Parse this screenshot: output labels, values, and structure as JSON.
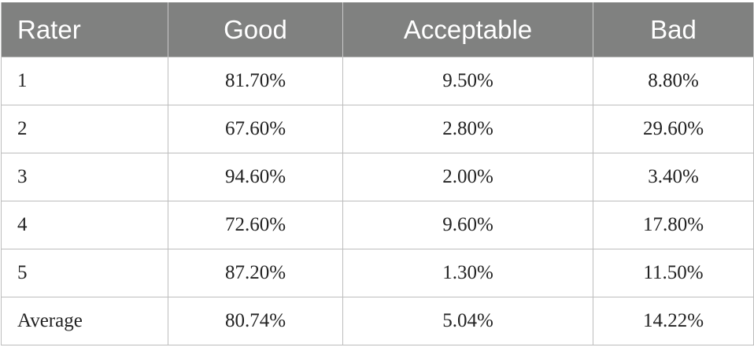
{
  "table": {
    "headers": [
      "Rater",
      "Good",
      "Acceptable",
      "Bad"
    ],
    "rows": [
      [
        "1",
        "81.70%",
        "9.50%",
        "8.80%"
      ],
      [
        "2",
        "67.60%",
        "2.80%",
        "29.60%"
      ],
      [
        "3",
        "94.60%",
        "2.00%",
        "3.40%"
      ],
      [
        "4",
        "72.60%",
        "9.60%",
        "17.80%"
      ],
      [
        "5",
        "87.20%",
        "1.30%",
        "11.50%"
      ],
      [
        "Average",
        "80.74%",
        "5.04%",
        "14.22%"
      ]
    ]
  },
  "colors": {
    "header_bg": "#808180",
    "header_text": "#ffffff",
    "grid": "#bdbdbd"
  }
}
